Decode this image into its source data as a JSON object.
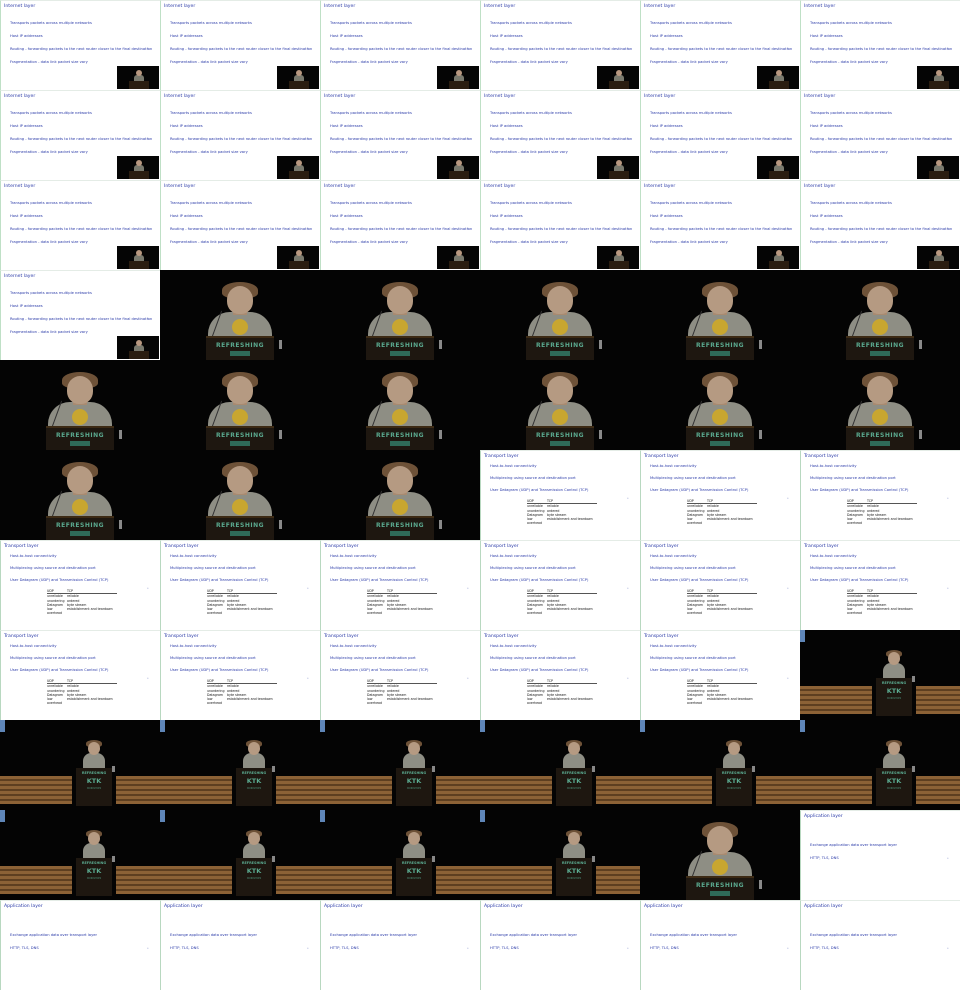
{
  "slides": {
    "internet": {
      "title": "Internet layer",
      "bullets": [
        "Transports packets across multiple networks",
        "Host IP addresses",
        "Routing - forwarding packets to the next router closer to the final destination",
        "Fragmentation - data link packet size vary"
      ],
      "marker": "•"
    },
    "transport": {
      "title": "Transport layer",
      "bullets": [
        "Host-to-host connectivity",
        "Multiplexing using source and destination port",
        "User Datagram (UDP) and Transmission Control (TCP)"
      ],
      "marker": "•",
      "table": {
        "headers": [
          "UDP",
          "TCP"
        ],
        "rows": [
          [
            "unreliable",
            "reliable"
          ],
          [
            "unordering",
            "ordered"
          ],
          [
            "Datagram",
            "byte stream"
          ],
          [
            "low overhead",
            "establishment and teardown"
          ]
        ]
      }
    },
    "application": {
      "title": "Application layer",
      "bullets": [
        "Exchange application data over transport layer",
        "HTTP, TLS, DNS"
      ],
      "marker": "•"
    }
  },
  "camera": {
    "podium_text": "REFRESHING",
    "podium_logo": "KTK",
    "podium_sub": "WORKSHOPS"
  },
  "sequence": [
    "internet",
    "internet",
    "internet",
    "internet",
    "internet",
    "internet",
    "internet",
    "internet",
    "internet",
    "internet",
    "internet",
    "internet",
    "internet",
    "internet",
    "internet",
    "internet",
    "internet",
    "internet",
    "internet",
    "cam",
    "cam",
    "cam",
    "cam",
    "cam",
    "cam",
    "cam",
    "cam",
    "cam",
    "cam",
    "cam",
    "cam",
    "cam",
    "cam",
    "transport",
    "transport",
    "transport",
    "transport",
    "transport",
    "transport",
    "transport",
    "transport",
    "transport",
    "transport",
    "transport",
    "transport",
    "transport",
    "transport",
    "wide",
    "wide",
    "wide",
    "wide",
    "wide",
    "wide",
    "wide",
    "wide",
    "wide",
    "wide",
    "wide",
    "cam",
    "application",
    "application",
    "application",
    "application",
    "application",
    "application",
    "application"
  ],
  "colors": {
    "slide_text": "#2a3aa8",
    "slide_border": "#b8d8c0",
    "stage_bg": "#040404",
    "podium_green": "#5aa88e"
  }
}
